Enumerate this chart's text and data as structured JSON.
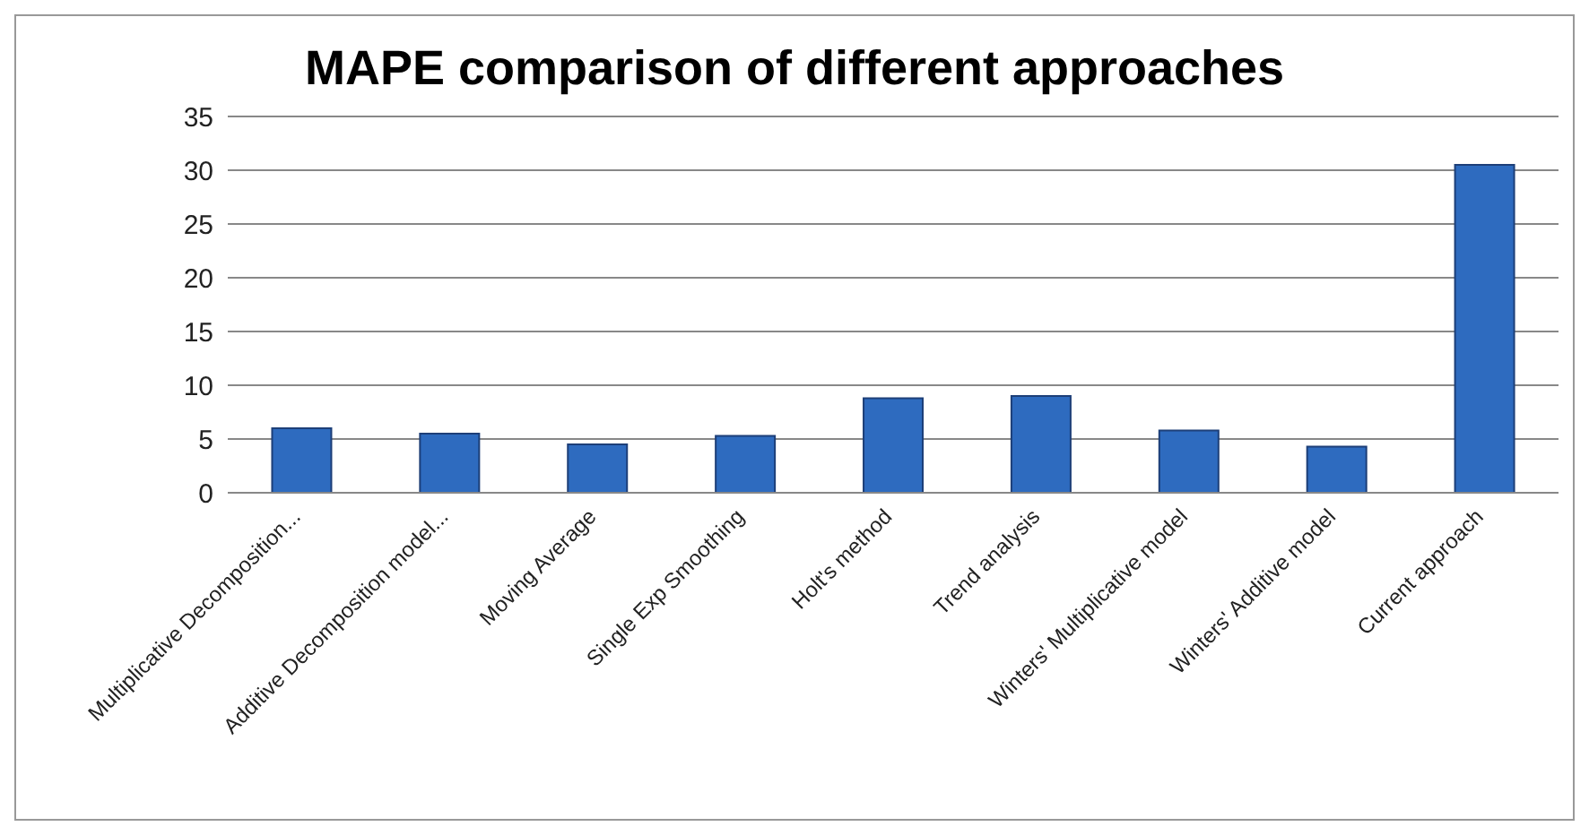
{
  "chart_data": {
    "type": "bar",
    "title": "MAPE comparison of different approaches",
    "categories": [
      "Multiplicative Decomposition...",
      "Additive Decomposition model...",
      "Moving Average",
      "Single Exp Smoothing",
      "Holt's method",
      "Trend analysis",
      "Winters' Multiplicative model",
      "Winters' Additive model",
      "Current approach"
    ],
    "values": [
      6.0,
      5.5,
      4.5,
      5.3,
      8.8,
      9.0,
      5.8,
      4.3,
      30.5
    ],
    "color": "#2e6bbf",
    "ylim": [
      0,
      35
    ],
    "yticks": [
      0,
      5,
      10,
      15,
      20,
      25,
      30,
      35
    ],
    "grid": "y"
  }
}
